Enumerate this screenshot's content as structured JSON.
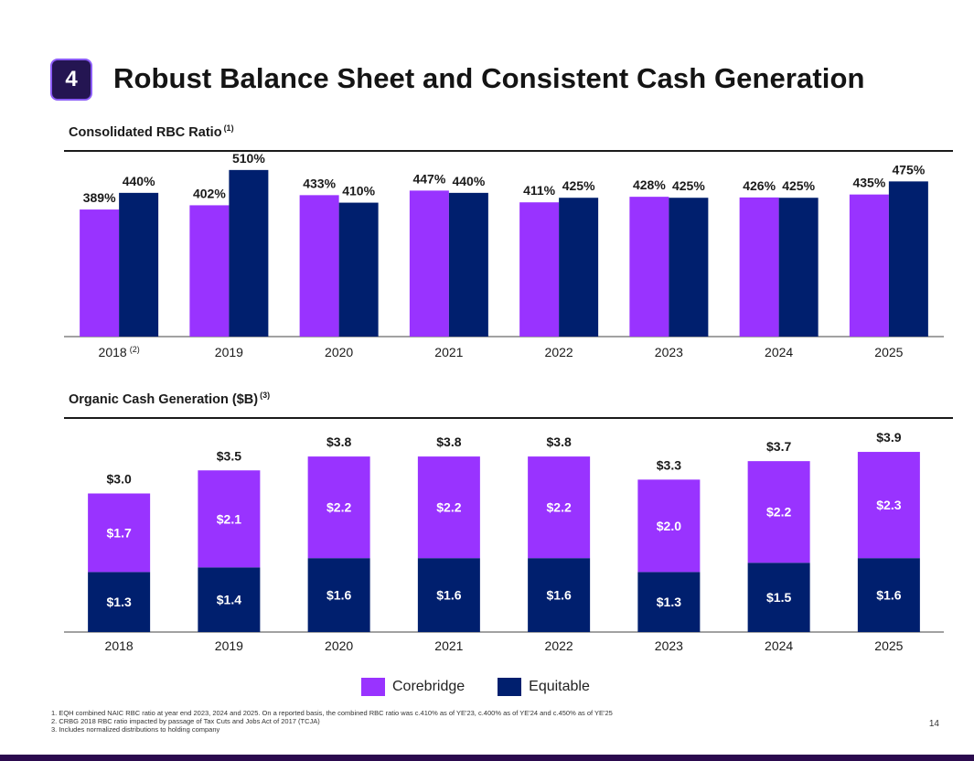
{
  "header": {
    "badge": "4",
    "title": "Robust Balance Sheet and Consistent Cash Generation"
  },
  "colors": {
    "corebridge": "#9933ff",
    "equitable": "#001f6e",
    "text": "#1a1a1a"
  },
  "chart_data": [
    {
      "type": "bar",
      "title": "Consolidated RBC Ratio",
      "title_note": "(1)",
      "categories": [
        "2018",
        "2019",
        "2020",
        "2021",
        "2022",
        "2023",
        "2024",
        "2025"
      ],
      "category_notes": [
        "(2)",
        "",
        "",
        "",
        "",
        "",
        "",
        ""
      ],
      "series": [
        {
          "name": "Corebridge",
          "values": [
            389,
            402,
            433,
            447,
            411,
            428,
            426,
            435
          ],
          "labels": [
            "389%",
            "402%",
            "433%",
            "447%",
            "411%",
            "428%",
            "426%",
            "435%"
          ]
        },
        {
          "name": "Equitable",
          "values": [
            440,
            510,
            410,
            440,
            425,
            425,
            425,
            475
          ],
          "labels": [
            "440%",
            "510%",
            "410%",
            "440%",
            "425%",
            "425%",
            "425%",
            "475%"
          ]
        }
      ],
      "ylim": [
        0,
        560
      ],
      "grid": false
    },
    {
      "type": "bar",
      "stacked": true,
      "title": "Organic Cash Generation ($B)",
      "title_note": "(3)",
      "categories": [
        "2018",
        "2019",
        "2020",
        "2021",
        "2022",
        "2023",
        "2024",
        "2025"
      ],
      "series": [
        {
          "name": "Equitable",
          "values": [
            1.3,
            1.4,
            1.6,
            1.6,
            1.6,
            1.3,
            1.5,
            1.6
          ],
          "labels": [
            "$1.3",
            "$1.4",
            "$1.6",
            "$1.6",
            "$1.6",
            "$1.3",
            "$1.5",
            "$1.6"
          ]
        },
        {
          "name": "Corebridge",
          "values": [
            1.7,
            2.1,
            2.2,
            2.2,
            2.2,
            2.0,
            2.2,
            2.3
          ],
          "labels": [
            "$1.7",
            "$2.1",
            "$2.2",
            "$2.2",
            "$2.2",
            "$2.0",
            "$2.2",
            "$2.3"
          ]
        }
      ],
      "totals": [
        3.0,
        3.5,
        3.8,
        3.8,
        3.8,
        3.3,
        3.7,
        3.9
      ],
      "total_labels": [
        "$3.0",
        "$3.5",
        "$3.8",
        "$3.8",
        "$3.8",
        "$3.3",
        "$3.7",
        "$3.9"
      ],
      "ylim": [
        0,
        4.1
      ],
      "grid": false
    }
  ],
  "legend": {
    "items": [
      {
        "label": "Corebridge"
      },
      {
        "label": "Equitable"
      }
    ]
  },
  "footnotes": [
    "1.  EQH combined NAIC RBC ratio at year end 2023, 2024 and 2025. On a reported basis, the combined RBC ratio was c.410% as of YE'23, c.400% as of YE'24 and c.450% as of YE'25",
    "2.  CRBG 2018 RBC ratio impacted by passage of Tax Cuts and Jobs Act of 2017 (TCJA)",
    "3.  Includes normalized distributions to holding company"
  ],
  "page_number": "14"
}
